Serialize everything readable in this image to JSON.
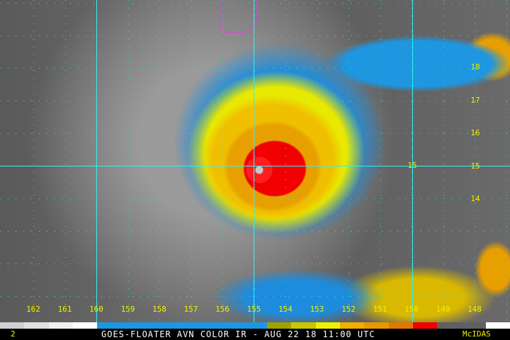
{
  "caption": "GOES-FLOATER AVN COLOR IR - AUG 22 18 11:00 UTC",
  "software": "McIDAS",
  "frame_number": "2",
  "longitude_labels": [
    "162",
    "161",
    "160",
    "159",
    "158",
    "157",
    "156",
    "155",
    "154",
    "153",
    "152",
    "151",
    "150",
    "149",
    "148"
  ],
  "latitude_labels": [
    "18",
    "17",
    "16",
    "15",
    "14"
  ],
  "latitude_label_left": "15",
  "colors": {
    "grid": "#30f0f0",
    "labels": "#f0f000",
    "border": "#e040e0"
  },
  "colorbar": [
    "#d0d0d0",
    "#e0e0e0",
    "#f0f0f0",
    "#ffffff",
    "#1e96e0",
    "#1e96e0",
    "#1e96e0",
    "#1e96e0",
    "#1e96e0",
    "#1e96e0",
    "#1e96e0",
    "#a0a000",
    "#c8c800",
    "#f0f000",
    "#f0b000",
    "#e89800",
    "#e07800",
    "#f00000",
    "#606060",
    "#606060",
    "#ffffff"
  ]
}
